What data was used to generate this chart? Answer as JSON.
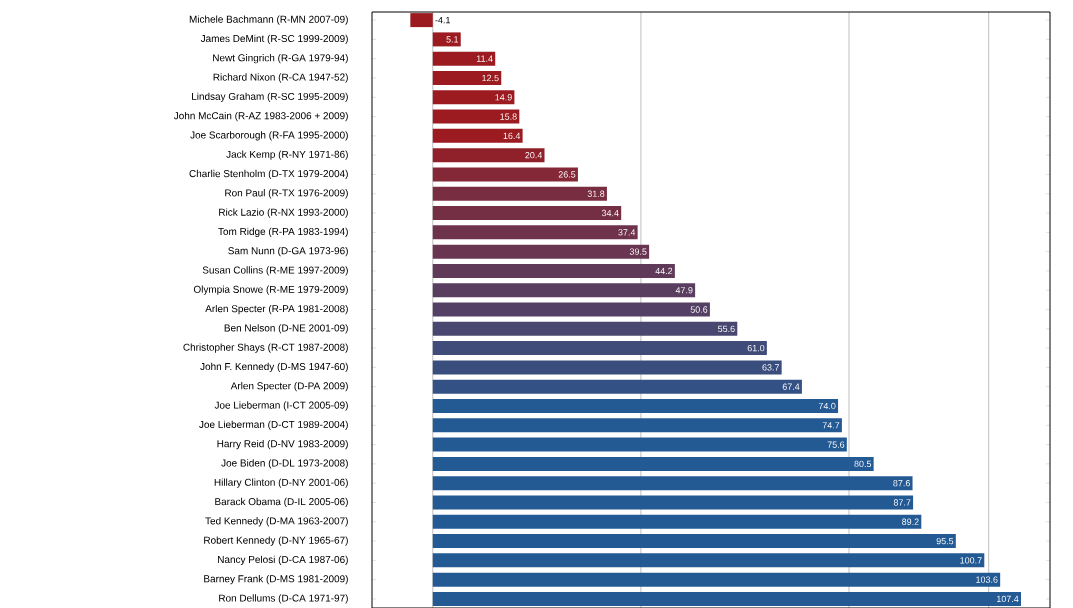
{
  "chart_data": {
    "type": "bar",
    "orientation": "horizontal",
    "categories": [
      "Michele Bachmann (R-MN 2007-09)",
      "James DeMint (R-SC 1999-2009)",
      "Newt Gingrich (R-GA 1979-94)",
      "Richard Nixon (R-CA 1947-52)",
      "Lindsay Graham (R-SC 1995-2009)",
      "John McCain (R-AZ 1983-2006 + 2009)",
      "Joe Scarborough (R-FA 1995-2000)",
      "Jack Kemp (R-NY 1971-86)",
      "Charlie Stenholm (D-TX 1979-2004)",
      "Ron Paul (R-TX 1976-2009)",
      "Rick Lazio (R-NX 1993-2000)",
      "Tom Ridge (R-PA 1983-1994)",
      "Sam Nunn (D-GA 1973-96)",
      "Susan Collins (R-ME 1997-2009)",
      "Olympia Snowe (R-ME 1979-2009)",
      "Arlen Specter (R-PA 1981-2008)",
      "Ben Nelson (D-NE 2001-09)",
      "Christopher Shays (R-CT 1987-2008)",
      "John F. Kennedy (D-MS 1947-60)",
      "Arlen Specter (D-PA 2009)",
      "Joe Lieberman (I-CT 2005-09)",
      "Joe Lieberman (D-CT 1989-2004)",
      "Harry Reid (D-NV 1983-2009)",
      "Joe Biden (D-DL 1973-2008)",
      "Hillary Clinton (D-NY 2001-06)",
      "Barack Obama (D-IL 2005-06)",
      "Ted Kennedy (D-MA 1963-2007)",
      "Robert Kennedy (D-NY 1965-67)",
      "Nancy Pelosi (D-CA 1987-06)",
      "Barney Frank (D-MS 1981-2009)",
      "Ron Dellums (D-CA 1971-97)"
    ],
    "values": [
      -4.1,
      5.1,
      11.4,
      12.5,
      14.9,
      15.8,
      16.4,
      20.4,
      26.5,
      31.8,
      34.4,
      37.4,
      39.5,
      44.2,
      47.9,
      50.6,
      55.6,
      61.0,
      63.7,
      67.4,
      74.0,
      74.7,
      75.6,
      80.5,
      87.6,
      87.7,
      89.2,
      95.5,
      100.7,
      103.6,
      107.4
    ],
    "value_labels": [
      "-4.1",
      "5.1",
      "11.4",
      "12.5",
      "14.9",
      "15.8",
      "16.4",
      "20.4",
      "26.5",
      "31.8",
      "34.4",
      "37.4",
      "39.5",
      "44.2",
      "47.9",
      "50.6",
      "55.6",
      "61.0",
      "63.7",
      "67.4",
      "74.0",
      "74.7",
      "75.6",
      "80.5",
      "87.6",
      "87.7",
      "89.2",
      "95.5",
      "100.7",
      "103.6",
      "107.4"
    ],
    "colors": [
      "#9b1b20",
      "#9b1b20",
      "#9b1b20",
      "#9b1b20",
      "#9b1b20",
      "#9b1b20",
      "#9b1b20",
      "#90212a",
      "#842736",
      "#792d40",
      "#752f45",
      "#6f324b",
      "#6a3550",
      "#603a59",
      "#593e60",
      "#544064",
      "#49466f",
      "#3f4b79",
      "#3a4e7e",
      "#335185",
      "#235a94",
      "#235a94",
      "#235a94",
      "#235a94",
      "#235a94",
      "#235a94",
      "#235a94",
      "#235a94",
      "#235a94",
      "#235a94",
      "#235a94"
    ],
    "xlim": [
      -11.1,
      112.7
    ],
    "xticks": [
      {
        "value": 0,
        "label": null
      },
      {
        "value": 38,
        "label": null
      },
      {
        "value": 76,
        "label": null
      },
      {
        "value": 101.5,
        "label": null
      }
    ],
    "grid": "x",
    "tick_labels": "y"
  }
}
